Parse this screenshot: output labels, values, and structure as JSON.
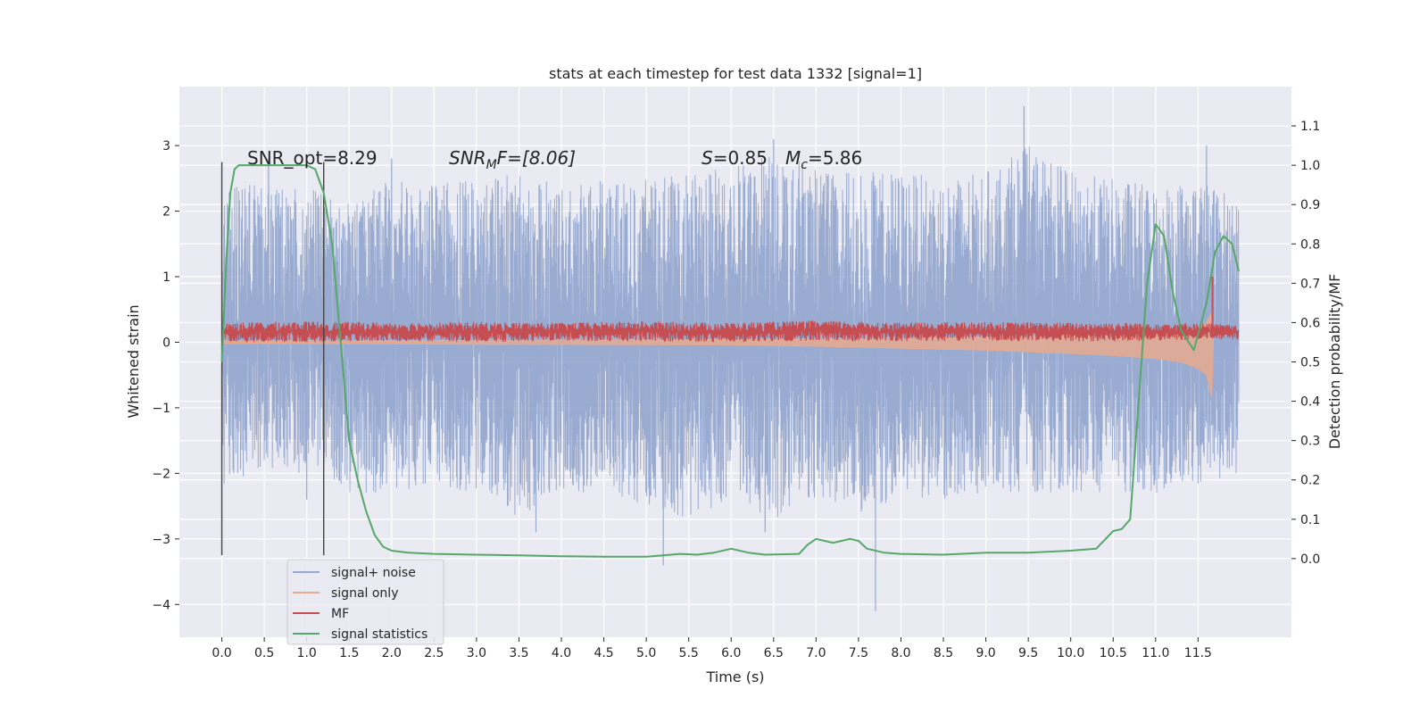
{
  "chart_data": {
    "type": "line",
    "title": "stats at each timestep for test data 1332 [signal=1]",
    "xlabel": "Time (s)",
    "ylabel": "Whitened strain",
    "y2label": "Detection probability/MF",
    "xlim": [
      -0.5,
      12.6
    ],
    "ylim": [
      -4.5,
      3.9
    ],
    "y2lim": [
      -0.2,
      1.2
    ],
    "xticks": [
      0.0,
      0.5,
      1.0,
      1.5,
      2.0,
      2.5,
      3.0,
      3.5,
      4.0,
      4.5,
      5.0,
      5.5,
      6.0,
      6.5,
      7.0,
      7.5,
      8.0,
      8.5,
      9.0,
      9.5,
      10.0,
      10.5,
      11.0,
      11.5
    ],
    "xtick_labels": [
      "0.0",
      "0.5",
      "1.0",
      "1.5",
      "2.0",
      "2.5",
      "3.0",
      "3.5",
      "4.0",
      "4.5",
      "5.0",
      "5.5",
      "6.0",
      "6.5",
      "7.0",
      "7.5",
      "8.0",
      "8.5",
      "9.0",
      "9.5",
      "10.0",
      "10.5",
      "11.0",
      "11.5"
    ],
    "yticks": [
      -4,
      -3,
      -2,
      -1,
      0,
      1,
      2,
      3
    ],
    "ytick_labels": [
      "−4",
      "−3",
      "−2",
      "−1",
      "0",
      "1",
      "2",
      "3"
    ],
    "y2ticks": [
      0.0,
      0.1,
      0.2,
      0.3,
      0.4,
      0.5,
      0.6,
      0.7,
      0.8,
      0.9,
      1.0,
      1.1
    ],
    "y2tick_labels": [
      "0.0",
      "0.1",
      "0.2",
      "0.3",
      "0.4",
      "0.5",
      "0.6",
      "0.7",
      "0.8",
      "0.9",
      "1.0",
      "1.1"
    ],
    "grid": true,
    "legend_position": "lower-left",
    "annotations": {
      "snr_opt": "SNR_opt=8.29",
      "snr_mf_main": "SNR",
      "snr_mf_sub": "M",
      "snr_mf_rest": "F=[8.06]",
      "s_sym": "S",
      "s_val": "=0.85",
      "mc_sym": "M",
      "mc_sub": "c",
      "mc_val": "=5.86"
    },
    "vertical_markers": [
      0.0,
      1.2
    ],
    "series": [
      {
        "name": "signal+ noise",
        "color": "#95a8cf",
        "axis": "left",
        "envelope": {
          "t": [
            0.0,
            0.3,
            0.6,
            0.9,
            1.2,
            1.5,
            2.0,
            2.5,
            3.0,
            3.5,
            4.0,
            4.5,
            5.0,
            5.5,
            6.0,
            6.5,
            7.0,
            7.5,
            8.0,
            8.5,
            9.0,
            9.5,
            10.0,
            10.5,
            11.0,
            11.5,
            11.98
          ],
          "upper": [
            2.3,
            2.6,
            2.4,
            2.4,
            2.3,
            2.2,
            2.5,
            2.4,
            2.5,
            2.6,
            2.4,
            2.5,
            2.5,
            2.6,
            2.7,
            2.9,
            2.7,
            2.6,
            2.6,
            2.5,
            2.6,
            3.0,
            2.6,
            2.5,
            2.4,
            2.5,
            2.2
          ],
          "lower": [
            -2.3,
            -2.0,
            -2.0,
            -2.0,
            -2.0,
            -2.3,
            -2.3,
            -2.2,
            -2.3,
            -2.7,
            -2.3,
            -2.3,
            -2.5,
            -2.7,
            -2.4,
            -2.7,
            -2.4,
            -2.6,
            -2.4,
            -2.4,
            -2.3,
            -2.3,
            -2.3,
            -2.3,
            -2.3,
            -2.2,
            -2.0
          ]
        },
        "spikes": [
          [
            0.55,
            2.8
          ],
          [
            2.0,
            2.8
          ],
          [
            6.5,
            3.1
          ],
          [
            9.45,
            3.6
          ],
          [
            11.6,
            3.0
          ],
          [
            5.2,
            -3.4
          ],
          [
            7.7,
            -4.1
          ],
          [
            3.7,
            -2.9
          ],
          [
            6.4,
            -2.9
          ],
          [
            1.0,
            -2.4
          ]
        ]
      },
      {
        "name": "signal only",
        "color": "#e8a98f",
        "axis": "left",
        "envelope": {
          "t": [
            0.0,
            6.0,
            7.0,
            8.0,
            9.0,
            10.0,
            10.5,
            11.0,
            11.3,
            11.5,
            11.6,
            11.66,
            11.68
          ],
          "upper": [
            0.02,
            0.04,
            0.05,
            0.06,
            0.08,
            0.1,
            0.12,
            0.15,
            0.18,
            0.22,
            0.3,
            0.45,
            0.0
          ],
          "lower": [
            -0.02,
            -0.04,
            -0.06,
            -0.09,
            -0.12,
            -0.17,
            -0.2,
            -0.25,
            -0.3,
            -0.4,
            -0.5,
            -0.85,
            0.0
          ]
        }
      },
      {
        "name": "MF",
        "color": "#c44e52",
        "axis": "left",
        "envelope": {
          "t": [
            0.0,
            1.0,
            2.0,
            3.0,
            4.0,
            5.0,
            6.0,
            7.0,
            8.0,
            9.0,
            10.0,
            11.0,
            11.6,
            11.98
          ],
          "upper": [
            0.3,
            0.32,
            0.3,
            0.31,
            0.3,
            0.32,
            0.3,
            0.33,
            0.3,
            0.31,
            0.3,
            0.3,
            0.3,
            0.25
          ],
          "lower": [
            0.0,
            0.0,
            0.02,
            0.0,
            0.02,
            0.01,
            0.0,
            0.02,
            0.01,
            0.02,
            0.01,
            0.02,
            0.05,
            0.04
          ]
        },
        "peak": [
          11.67,
          1.0
        ]
      },
      {
        "name": "signal statistics",
        "color": "#55a868",
        "axis": "right",
        "x": [
          0.0,
          0.05,
          0.1,
          0.15,
          0.2,
          0.3,
          0.5,
          0.8,
          1.0,
          1.1,
          1.2,
          1.3,
          1.4,
          1.5,
          1.6,
          1.7,
          1.8,
          1.9,
          2.0,
          2.2,
          2.5,
          3.0,
          3.5,
          4.0,
          4.5,
          5.0,
          5.2,
          5.4,
          5.6,
          5.8,
          6.0,
          6.2,
          6.4,
          6.8,
          6.9,
          7.0,
          7.1,
          7.2,
          7.3,
          7.4,
          7.5,
          7.6,
          7.8,
          8.0,
          8.5,
          9.0,
          9.5,
          10.0,
          10.3,
          10.5,
          10.6,
          10.7,
          10.8,
          10.9,
          11.0,
          11.1,
          11.2,
          11.3,
          11.45,
          11.6,
          11.7,
          11.8,
          11.9,
          11.98
        ],
        "y": [
          0.5,
          0.75,
          0.93,
          0.99,
          1.0,
          1.0,
          1.0,
          1.0,
          1.0,
          0.99,
          0.93,
          0.8,
          0.55,
          0.3,
          0.2,
          0.12,
          0.06,
          0.03,
          0.02,
          0.015,
          0.012,
          0.01,
          0.008,
          0.006,
          0.005,
          0.005,
          0.008,
          0.012,
          0.01,
          0.015,
          0.025,
          0.015,
          0.01,
          0.012,
          0.035,
          0.05,
          0.045,
          0.04,
          0.045,
          0.05,
          0.045,
          0.025,
          0.015,
          0.012,
          0.01,
          0.015,
          0.015,
          0.02,
          0.025,
          0.07,
          0.075,
          0.1,
          0.4,
          0.7,
          0.85,
          0.82,
          0.68,
          0.58,
          0.53,
          0.65,
          0.78,
          0.82,
          0.8,
          0.73
        ]
      }
    ]
  }
}
